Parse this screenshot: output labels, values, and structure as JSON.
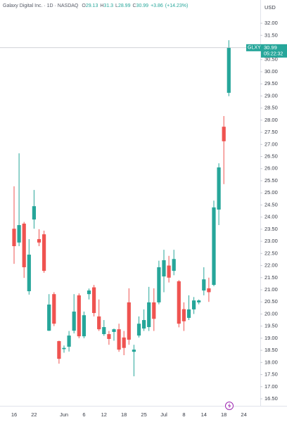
{
  "chart_data": {
    "type": "candlestick",
    "title": "Galaxy Digital Inc. · 1D · NASDAQ",
    "ohlc_prefixes": [
      "O",
      "H",
      "L",
      "C"
    ],
    "change_label": "+3.86",
    "change_pct_label": "(+14.23%)",
    "currency": "USD",
    "countdown": "05:22:32",
    "series": [
      {
        "name": "GLXY",
        "up_color": "#26a69a",
        "down_color": "#ef5350"
      }
    ],
    "categories": [
      "16",
      null,
      null,
      null,
      "22",
      null,
      null,
      null,
      null,
      null,
      "Jun",
      null,
      null,
      null,
      "6",
      null,
      null,
      null,
      "12",
      null,
      null,
      null,
      "18",
      null,
      null,
      null,
      "25",
      null,
      null,
      null,
      "Jul",
      null,
      null,
      null,
      "8",
      null,
      null,
      null,
      "14",
      null,
      null,
      null,
      "18",
      null,
      null,
      null,
      "24"
    ],
    "open": [
      23.52,
      22.95,
      23.73,
      20.94,
      23.9,
      23.09,
      23.29,
      19.31,
      20.82,
      18.88,
      18.55,
      18.65,
      19.31,
      20.77,
      19.08,
      20.82,
      21.1,
      19.9,
      19.17,
      19.17,
      19.26,
      19.37,
      19.03,
      20.48,
      18.44,
      19.11,
      19.4,
      19.46,
      20.48,
      20.48,
      21.55,
      22.0,
      21.78,
      21.35,
      20.2,
      19.84,
      20.19,
      20.48,
      20.97,
      21.06,
      21.2,
      24.31,
      27.73,
      29.13,
      null,
      null,
      null
    ],
    "high": [
      25.27,
      26.63,
      23.8,
      23.09,
      25.12,
      23.5,
      23.44,
      20.82,
      20.9,
      18.9,
      18.7,
      19.3,
      20.82,
      20.85,
      20.1,
      21.05,
      21.2,
      20.6,
      19.75,
      19.3,
      19.4,
      19.6,
      19.3,
      21.06,
      18.73,
      19.9,
      20.19,
      21.12,
      21.06,
      22.2,
      22.65,
      22.4,
      22.65,
      21.4,
      20.48,
      20.77,
      20.7,
      20.6,
      21.93,
      21.5,
      24.68,
      26.22,
      28.17,
      31.3,
      null,
      null,
      null
    ],
    "low": [
      22.07,
      22.8,
      21.49,
      20.8,
      23.52,
      22.8,
      21.7,
      19.3,
      19.5,
      17.95,
      18.4,
      18.45,
      19.2,
      19.0,
      19.0,
      20.6,
      19.9,
      19.3,
      19.1,
      18.73,
      18.9,
      18.44,
      18.3,
      18.73,
      17.43,
      19.03,
      19.3,
      19.3,
      19.3,
      20.4,
      20.9,
      21.3,
      21.6,
      19.45,
      19.3,
      19.75,
      20.0,
      20.4,
      20.77,
      20.5,
      21.15,
      23.67,
      25.36,
      28.99,
      null,
      null,
      null
    ],
    "close": [
      22.8,
      23.67,
      21.93,
      22.45,
      24.45,
      22.95,
      21.78,
      20.39,
      19.6,
      18.15,
      18.6,
      19.11,
      20.1,
      19.08,
      19.95,
      20.97,
      20.04,
      19.37,
      19.46,
      18.97,
      19.37,
      18.53,
      18.6,
      18.94,
      18.53,
      19.6,
      19.75,
      20.48,
      19.8,
      21.93,
      22.22,
      21.5,
      22.27,
      19.6,
      19.7,
      20.19,
      20.56,
      20.56,
      21.43,
      20.9,
      24.4,
      26.05,
      27.13,
      30.99,
      null,
      null,
      null
    ],
    "ylim": [
      16.21,
      32.96
    ],
    "yticks": [
      {
        "value": 16.5,
        "label": "16.50"
      },
      {
        "value": 17,
        "label": "17.00"
      },
      {
        "value": 17.5,
        "label": "17.50"
      },
      {
        "value": 18,
        "label": "18.00"
      },
      {
        "value": 18.5,
        "label": "18.50"
      },
      {
        "value": 19,
        "label": "19.00"
      },
      {
        "value": 19.5,
        "label": "19.50"
      },
      {
        "value": 20,
        "label": "20.00"
      },
      {
        "value": 20.5,
        "label": "20.50"
      },
      {
        "value": 21,
        "label": "21.00"
      },
      {
        "value": 21.5,
        "label": "21.50"
      },
      {
        "value": 22,
        "label": "22.00"
      },
      {
        "value": 22.5,
        "label": "22.50"
      },
      {
        "value": 23,
        "label": "23.00"
      },
      {
        "value": 23.5,
        "label": "23.50"
      },
      {
        "value": 24,
        "label": "24.00"
      },
      {
        "value": 24.5,
        "label": "24.50"
      },
      {
        "value": 25,
        "label": "25.00"
      },
      {
        "value": 25.5,
        "label": "25.50"
      },
      {
        "value": 26,
        "label": "26.00"
      },
      {
        "value": 26.5,
        "label": "26.50"
      },
      {
        "value": 27,
        "label": "27.00"
      },
      {
        "value": 27.5,
        "label": "27.50"
      },
      {
        "value": 28,
        "label": "28.00"
      },
      {
        "value": 28.5,
        "label": "28.50"
      },
      {
        "value": 29,
        "label": "29.00"
      },
      {
        "value": 29.5,
        "label": "29.50"
      },
      {
        "value": 30,
        "label": "30.00"
      },
      {
        "value": 30.5,
        "label": "30.50"
      },
      {
        "value": 31,
        "label": "31.00"
      },
      {
        "value": 31.5,
        "label": "31.50"
      },
      {
        "value": 32,
        "label": "32.00"
      }
    ],
    "grid": false
  }
}
